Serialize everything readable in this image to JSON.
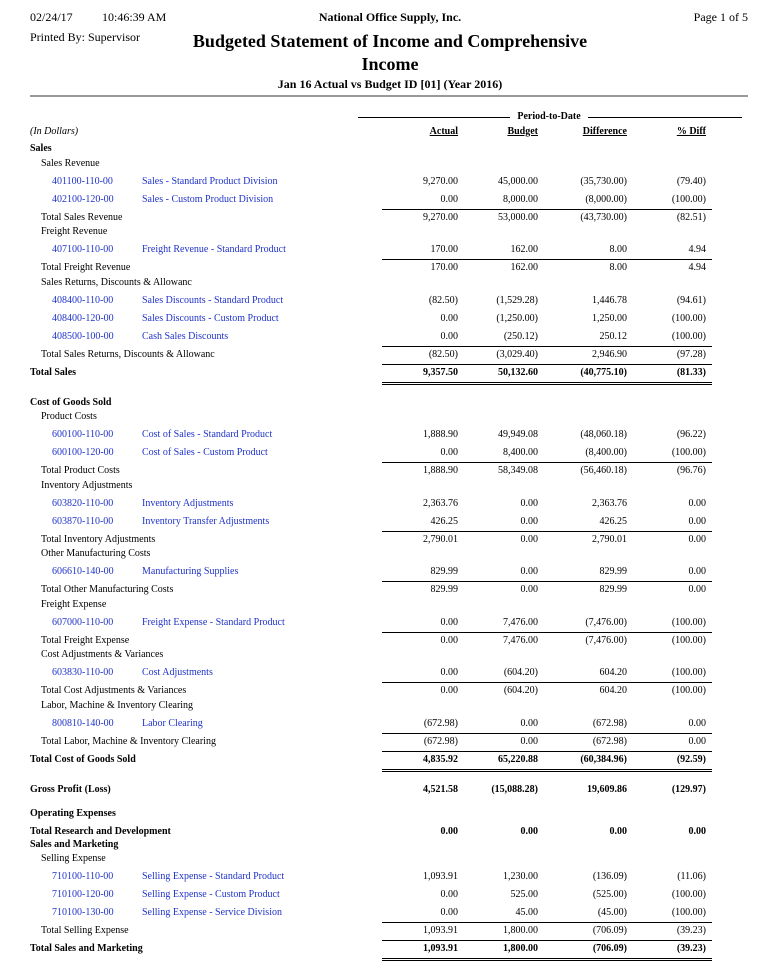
{
  "header": {
    "date": "02/24/17",
    "time": "10:46:39 AM",
    "company": "National Office Supply, Inc.",
    "page": "Page 1 of 5",
    "printed_by": "Printed By: Supervisor",
    "title": "Budgeted Statement of Income and Comprehensive Income",
    "subtitle": "Jan 16 Actual vs Budget ID [01] (Year 2016)"
  },
  "columns": {
    "units": "(In Dollars)",
    "period": "Period-to-Date",
    "labels": [
      "Actual",
      "Budget",
      "Difference",
      "% Diff"
    ]
  },
  "lines": [
    {
      "heading": "Sales"
    },
    {
      "subheading": "Sales Revenue"
    },
    {
      "account": "401100-110-00",
      "description": "Sales - Standard Product Division",
      "values": [
        "9,270.00",
        "45,000.00",
        "(35,730.00)",
        "(79.40)"
      ]
    },
    {
      "account": "402100-120-00",
      "description": "Sales - Custom Product Division",
      "values": [
        "0.00",
        "8,000.00",
        "(8,000.00)",
        "(100.00)"
      ]
    },
    {
      "subtotal": "Total Sales Revenue",
      "values": [
        "9,270.00",
        "53,000.00",
        "(43,730.00)",
        "(82.51)"
      ]
    },
    {
      "subheading": "Freight Revenue"
    },
    {
      "account": "407100-110-00",
      "description": "Freight Revenue - Standard Product",
      "values": [
        "170.00",
        "162.00",
        "8.00",
        "4.94"
      ]
    },
    {
      "subtotal": "Total Freight Revenue",
      "values": [
        "170.00",
        "162.00",
        "8.00",
        "4.94"
      ]
    },
    {
      "subheading": "Sales Returns, Discounts & Allowanc"
    },
    {
      "account": "408400-110-00",
      "description": "Sales Discounts - Standard Product",
      "values": [
        "(82.50)",
        "(1,529.28)",
        "1,446.78",
        "(94.61)"
      ]
    },
    {
      "account": "408400-120-00",
      "description": "Sales Discounts - Custom Product",
      "values": [
        "0.00",
        "(1,250.00)",
        "1,250.00",
        "(100.00)"
      ]
    },
    {
      "account": "408500-100-00",
      "description": "Cash Sales Discounts",
      "values": [
        "0.00",
        "(250.12)",
        "250.12",
        "(100.00)"
      ]
    },
    {
      "subtotal": "Total Sales Returns, Discounts & Allowanc",
      "values": [
        "(82.50)",
        "(3,029.40)",
        "2,946.90",
        "(97.28)"
      ]
    },
    {
      "total": "Total Sales",
      "values": [
        "9,357.50",
        "50,132.60",
        "(40,775.10)",
        "(81.33)"
      ]
    },
    {
      "heading": "Cost of Goods Sold"
    },
    {
      "subheading": "Product Costs"
    },
    {
      "account": "600100-110-00",
      "description": "Cost of Sales - Standard Product",
      "values": [
        "1,888.90",
        "49,949.08",
        "(48,060.18)",
        "(96.22)"
      ]
    },
    {
      "account": "600100-120-00",
      "description": "Cost of Sales - Custom Product",
      "values": [
        "0.00",
        "8,400.00",
        "(8,400.00)",
        "(100.00)"
      ]
    },
    {
      "subtotal": "Total Product Costs",
      "values": [
        "1,888.90",
        "58,349.08",
        "(56,460.18)",
        "(96.76)"
      ]
    },
    {
      "subheading": "Inventory Adjustments"
    },
    {
      "account": "603820-110-00",
      "description": "Inventory Adjustments",
      "values": [
        "2,363.76",
        "0.00",
        "2,363.76",
        "0.00"
      ]
    },
    {
      "account": "603870-110-00",
      "description": "Inventory Transfer Adjustments",
      "values": [
        "426.25",
        "0.00",
        "426.25",
        "0.00"
      ]
    },
    {
      "subtotal": "Total Inventory Adjustments",
      "values": [
        "2,790.01",
        "0.00",
        "2,790.01",
        "0.00"
      ]
    },
    {
      "subheading": "Other Manufacturing Costs"
    },
    {
      "account": "606610-140-00",
      "description": "Manufacturing Supplies",
      "values": [
        "829.99",
        "0.00",
        "829.99",
        "0.00"
      ]
    },
    {
      "subtotal": "Total Other Manufacturing Costs",
      "values": [
        "829.99",
        "0.00",
        "829.99",
        "0.00"
      ]
    },
    {
      "subheading": "Freight Expense"
    },
    {
      "account": "607000-110-00",
      "description": "Freight Expense - Standard Product",
      "values": [
        "0.00",
        "7,476.00",
        "(7,476.00)",
        "(100.00)"
      ]
    },
    {
      "subtotal": "Total Freight Expense",
      "values": [
        "0.00",
        "7,476.00",
        "(7,476.00)",
        "(100.00)"
      ]
    },
    {
      "subheading": "Cost Adjustments & Variances"
    },
    {
      "account": "603830-110-00",
      "description": "Cost Adjustments",
      "values": [
        "0.00",
        "(604.20)",
        "604.20",
        "(100.00)"
      ]
    },
    {
      "subtotal": "Total Cost Adjustments & Variances",
      "values": [
        "0.00",
        "(604.20)",
        "604.20",
        "(100.00)"
      ]
    },
    {
      "subheading": "Labor, Machine & Inventory Clearing"
    },
    {
      "account": "800810-140-00",
      "description": "Labor Clearing",
      "values": [
        "(672.98)",
        "0.00",
        "(672.98)",
        "0.00"
      ]
    },
    {
      "subtotal": "Total Labor, Machine & Inventory Clearing",
      "values": [
        "(672.98)",
        "0.00",
        "(672.98)",
        "0.00"
      ]
    },
    {
      "total": "Total Cost of Goods Sold",
      "values": [
        "4,835.92",
        "65,220.88",
        "(60,384.96)",
        "(92.59)"
      ]
    },
    {
      "result": "Gross Profit (Loss)",
      "values": [
        "4,521.58",
        "(15,088.28)",
        "19,609.86",
        "(129.97)"
      ]
    },
    {
      "heading": "Operating Expenses"
    },
    {
      "result": "Total Research and Development",
      "values": [
        "0.00",
        "0.00",
        "0.00",
        "0.00"
      ]
    },
    {
      "heading": "Sales and Marketing"
    },
    {
      "subheading": "Selling Expense"
    },
    {
      "account": "710100-110-00",
      "description": "Selling Expense - Standard Product",
      "values": [
        "1,093.91",
        "1,230.00",
        "(136.09)",
        "(11.06)"
      ]
    },
    {
      "account": "710100-120-00",
      "description": "Selling Expense - Custom Product",
      "values": [
        "0.00",
        "525.00",
        "(525.00)",
        "(100.00)"
      ]
    },
    {
      "account": "710100-130-00",
      "description": "Selling Expense - Service Division",
      "values": [
        "0.00",
        "45.00",
        "(45.00)",
        "(100.00)"
      ]
    },
    {
      "subtotal": "Total Selling Expense",
      "values": [
        "1,093.91",
        "1,800.00",
        "(706.09)",
        "(39.23)"
      ]
    },
    {
      "total": "Total Sales and Marketing",
      "values": [
        "1,093.91",
        "1,800.00",
        "(706.09)",
        "(39.23)"
      ]
    }
  ]
}
